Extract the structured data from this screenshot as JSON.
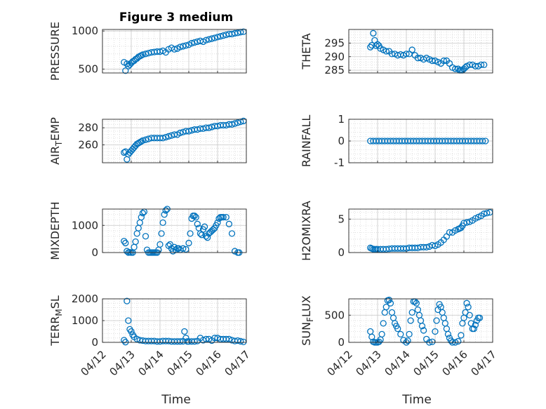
{
  "figure": {
    "title": "Figure 3 medium",
    "xlabel": "Time",
    "xtick_labels": [
      "04/12",
      "04/13",
      "04/14",
      "04/15",
      "04/16",
      "04/17"
    ],
    "marker_color": "#0072BD",
    "grid_color": "#d9d9d9"
  },
  "chart_data": [
    {
      "type": "scatter",
      "title": "Figure 3 medium",
      "xlabel": "",
      "ylabel": "PRESSURE",
      "xlim": [
        0,
        5
      ],
      "ylim": [
        450,
        1020
      ],
      "yticks": [
        500,
        1000
      ],
      "grid": true,
      "x": [
        0.75,
        0.8,
        0.85,
        0.9,
        0.95,
        1.0,
        1.05,
        1.1,
        1.15,
        1.2,
        1.25,
        1.3,
        1.35,
        1.4,
        1.5,
        1.6,
        1.7,
        1.8,
        1.9,
        2.0,
        2.1,
        2.2,
        2.3,
        2.4,
        2.5,
        2.6,
        2.7,
        2.8,
        2.9,
        3.0,
        3.1,
        3.2,
        3.3,
        3.4,
        3.5,
        3.6,
        3.7,
        3.8,
        3.9,
        4.0,
        4.1,
        4.2,
        4.3,
        4.4,
        4.5,
        4.6,
        4.7,
        4.8,
        4.9
      ],
      "y": [
        590,
        480,
        570,
        540,
        560,
        580,
        600,
        610,
        630,
        640,
        660,
        670,
        680,
        690,
        700,
        710,
        720,
        725,
        730,
        730,
        740,
        720,
        760,
        780,
        760,
        770,
        790,
        800,
        810,
        820,
        840,
        850,
        860,
        870,
        860,
        880,
        890,
        900,
        910,
        920,
        930,
        940,
        950,
        960,
        960,
        970,
        975,
        985,
        990
      ]
    },
    {
      "type": "scatter",
      "title": "",
      "xlabel": "",
      "ylabel": "THETA",
      "xlim": [
        0,
        5
      ],
      "ylim": [
        284,
        300
      ],
      "yticks": [
        285,
        290,
        295
      ],
      "grid": true,
      "x": [
        0.75,
        0.8,
        0.85,
        0.9,
        0.95,
        1.0,
        1.05,
        1.1,
        1.2,
        1.3,
        1.4,
        1.5,
        1.6,
        1.7,
        1.8,
        1.9,
        2.0,
        2.1,
        2.2,
        2.3,
        2.4,
        2.5,
        2.6,
        2.7,
        2.8,
        2.9,
        3.0,
        3.1,
        3.2,
        3.3,
        3.4,
        3.5,
        3.6,
        3.7,
        3.8,
        3.85,
        3.9,
        3.95,
        4.0,
        4.05,
        4.1,
        4.2,
        4.3,
        4.4,
        4.5,
        4.6,
        4.7
      ],
      "y": [
        293.5,
        294.2,
        298.6,
        296.0,
        294.0,
        294.5,
        294.0,
        293.0,
        292.5,
        292.0,
        292.0,
        291.0,
        291.0,
        290.5,
        290.8,
        290.5,
        291.0,
        291.0,
        292.5,
        290.5,
        289.5,
        289.5,
        289.0,
        289.5,
        289.0,
        288.5,
        288.5,
        288.0,
        287.5,
        288.5,
        288.5,
        287.5,
        286.0,
        285.5,
        285.5,
        285.0,
        285.0,
        285.0,
        285.5,
        286.0,
        286.5,
        287.0,
        287.0,
        286.5,
        286.5,
        287.0,
        287.0
      ]
    },
    {
      "type": "scatter",
      "title": "",
      "xlabel": "",
      "ylabel": "AIR_TEMP",
      "xlim": [
        0,
        5
      ],
      "ylim": [
        239,
        290
      ],
      "yticks": [
        260,
        280
      ],
      "grid": true,
      "x": [
        0.75,
        0.8,
        0.85,
        0.9,
        0.95,
        1.0,
        1.05,
        1.1,
        1.15,
        1.2,
        1.25,
        1.3,
        1.35,
        1.4,
        1.5,
        1.6,
        1.7,
        1.8,
        1.9,
        2.0,
        2.1,
        2.2,
        2.3,
        2.4,
        2.5,
        2.6,
        2.7,
        2.8,
        2.9,
        3.0,
        3.1,
        3.2,
        3.3,
        3.4,
        3.5,
        3.6,
        3.7,
        3.8,
        3.9,
        4.0,
        4.1,
        4.2,
        4.3,
        4.4,
        4.5,
        4.6,
        4.7,
        4.8,
        4.9
      ],
      "y": [
        251,
        252,
        243,
        249,
        251,
        253,
        255,
        257,
        259,
        261,
        262,
        263,
        264,
        265,
        266,
        267,
        268,
        268,
        268,
        268,
        268,
        269,
        270,
        271,
        272,
        272,
        274,
        275,
        276,
        276,
        277,
        278,
        278,
        279,
        279,
        280,
        280,
        281,
        282,
        282,
        283,
        283,
        283,
        284,
        284,
        285,
        286,
        287,
        288
      ]
    },
    {
      "type": "scatter",
      "title": "",
      "xlabel": "",
      "ylabel": "RAINFALL",
      "xlim": [
        0,
        5
      ],
      "ylim": [
        -1,
        1
      ],
      "yticks": [
        -1,
        0,
        1
      ],
      "grid": true,
      "x": [
        0.75,
        0.85,
        0.95,
        1.05,
        1.15,
        1.25,
        1.35,
        1.45,
        1.55,
        1.65,
        1.75,
        1.85,
        1.95,
        2.05,
        2.15,
        2.25,
        2.35,
        2.45,
        2.55,
        2.65,
        2.75,
        2.85,
        2.95,
        3.05,
        3.15,
        3.25,
        3.35,
        3.45,
        3.55,
        3.65,
        3.75,
        3.85,
        3.95,
        4.05,
        4.15,
        4.25,
        4.35,
        4.45,
        4.55,
        4.65,
        4.75
      ],
      "y": [
        0,
        0,
        0,
        0,
        0,
        0,
        0,
        0,
        0,
        0,
        0,
        0,
        0,
        0,
        0,
        0,
        0,
        0,
        0,
        0,
        0,
        0,
        0,
        0,
        0,
        0,
        0,
        0,
        0,
        0,
        0,
        0,
        0,
        0,
        0,
        0,
        0,
        0,
        0,
        0,
        0
      ]
    },
    {
      "type": "scatter",
      "title": "",
      "xlabel": "",
      "ylabel": "MIXDEPTH",
      "xlim": [
        0,
        5
      ],
      "ylim": [
        0,
        1600
      ],
      "yticks": [
        0,
        1000
      ],
      "grid": true,
      "x": [
        0.75,
        0.8,
        0.85,
        0.9,
        0.95,
        1.0,
        1.05,
        1.1,
        1.15,
        1.2,
        1.25,
        1.3,
        1.35,
        1.4,
        1.45,
        1.5,
        1.55,
        1.6,
        1.65,
        1.7,
        1.75,
        1.8,
        1.85,
        1.9,
        1.95,
        2.0,
        2.05,
        2.1,
        2.15,
        2.2,
        2.25,
        2.3,
        2.35,
        2.4,
        2.45,
        2.5,
        2.55,
        2.6,
        2.65,
        2.7,
        2.8,
        2.9,
        3.0,
        3.05,
        3.1,
        3.15,
        3.2,
        3.25,
        3.3,
        3.35,
        3.4,
        3.45,
        3.5,
        3.55,
        3.6,
        3.65,
        3.7,
        3.75,
        3.8,
        3.85,
        3.9,
        3.95,
        4.0,
        4.05,
        4.1,
        4.15,
        4.2,
        4.3,
        4.4,
        4.5,
        4.6,
        4.7,
        4.75
      ],
      "y": [
        420,
        350,
        50,
        0,
        10,
        0,
        0,
        200,
        400,
        700,
        900,
        1100,
        1300,
        1450,
        1500,
        600,
        100,
        0,
        0,
        0,
        0,
        0,
        0,
        0,
        100,
        300,
        700,
        1100,
        1400,
        1550,
        1600,
        250,
        300,
        150,
        50,
        200,
        100,
        150,
        150,
        100,
        150,
        120,
        350,
        700,
        1250,
        1350,
        1350,
        1300,
        1050,
        900,
        700,
        650,
        850,
        950,
        600,
        550,
        700,
        750,
        800,
        850,
        900,
        1000,
        1100,
        1250,
        1300,
        1300,
        1300,
        1300,
        1050,
        700,
        50,
        0,
        0
      ]
    },
    {
      "type": "scatter",
      "title": "",
      "xlabel": "",
      "ylabel": "H2OMIXRA",
      "xlim": [
        0,
        5
      ],
      "ylim": [
        0,
        6.5
      ],
      "yticks": [
        0,
        5
      ],
      "grid": true,
      "x": [
        0.75,
        0.8,
        0.85,
        0.9,
        0.95,
        1.0,
        1.1,
        1.2,
        1.3,
        1.4,
        1.5,
        1.6,
        1.7,
        1.8,
        1.9,
        2.0,
        2.1,
        2.2,
        2.3,
        2.4,
        2.5,
        2.6,
        2.7,
        2.8,
        2.9,
        3.0,
        3.1,
        3.2,
        3.3,
        3.4,
        3.5,
        3.6,
        3.7,
        3.8,
        3.85,
        3.9,
        3.95,
        4.0,
        4.1,
        4.2,
        4.3,
        4.4,
        4.5,
        4.6,
        4.7,
        4.8,
        4.9
      ],
      "y": [
        0.7,
        0.6,
        0.5,
        0.5,
        0.5,
        0.5,
        0.5,
        0.5,
        0.5,
        0.55,
        0.6,
        0.6,
        0.6,
        0.6,
        0.6,
        0.6,
        0.7,
        0.7,
        0.7,
        0.7,
        0.8,
        0.8,
        0.8,
        0.9,
        1.1,
        1.0,
        1.2,
        1.5,
        1.9,
        2.4,
        3.0,
        3.0,
        3.3,
        3.5,
        3.6,
        3.7,
        4.0,
        4.4,
        4.5,
        4.6,
        4.8,
        5.1,
        5.3,
        5.5,
        5.8,
        5.9,
        6.0
      ]
    },
    {
      "type": "scatter",
      "title": "",
      "xlabel": "Time",
      "ylabel": "TERR_MSL",
      "xlim": [
        0,
        5
      ],
      "ylim": [
        0,
        2000
      ],
      "yticks": [
        0,
        1000,
        2000
      ],
      "grid": true,
      "x": [
        0.75,
        0.8,
        0.85,
        0.9,
        0.95,
        1.0,
        1.05,
        1.1,
        1.2,
        1.3,
        1.4,
        1.5,
        1.6,
        1.7,
        1.8,
        1.9,
        2.0,
        2.1,
        2.2,
        2.3,
        2.4,
        2.5,
        2.6,
        2.7,
        2.8,
        2.85,
        2.9,
        2.95,
        3.0,
        3.1,
        3.2,
        3.3,
        3.4,
        3.5,
        3.6,
        3.7,
        3.8,
        3.9,
        4.0,
        4.1,
        4.2,
        4.3,
        4.4,
        4.5,
        4.6,
        4.7,
        4.8,
        4.9
      ],
      "y": [
        100,
        10,
        1900,
        1000,
        600,
        500,
        350,
        250,
        150,
        100,
        80,
        60,
        60,
        60,
        60,
        40,
        40,
        60,
        60,
        60,
        40,
        40,
        40,
        40,
        50,
        500,
        200,
        40,
        40,
        40,
        40,
        60,
        200,
        100,
        150,
        150,
        80,
        200,
        200,
        150,
        150,
        150,
        150,
        100,
        60,
        80,
        50,
        20
      ]
    },
    {
      "type": "scatter",
      "title": "",
      "xlabel": "Time",
      "ylabel": "SUN_FLUX",
      "xlim": [
        0,
        5
      ],
      "ylim": [
        0,
        800
      ],
      "yticks": [
        0,
        500
      ],
      "grid": true,
      "x": [
        0.75,
        0.8,
        0.85,
        0.9,
        0.95,
        1.0,
        1.05,
        1.1,
        1.15,
        1.2,
        1.25,
        1.3,
        1.35,
        1.4,
        1.45,
        1.5,
        1.55,
        1.6,
        1.65,
        1.7,
        1.8,
        1.9,
        2.0,
        2.05,
        2.1,
        2.15,
        2.2,
        2.25,
        2.3,
        2.35,
        2.4,
        2.45,
        2.5,
        2.55,
        2.6,
        2.7,
        2.8,
        2.9,
        3.0,
        3.05,
        3.1,
        3.15,
        3.2,
        3.25,
        3.3,
        3.35,
        3.4,
        3.45,
        3.5,
        3.55,
        3.6,
        3.7,
        3.8,
        3.9,
        3.95,
        4.0,
        4.05,
        4.1,
        4.15,
        4.2,
        4.25,
        4.3,
        4.35,
        4.4,
        4.45,
        4.5,
        4.55
      ],
      "y": [
        200,
        100,
        10,
        0,
        0,
        0,
        10,
        50,
        150,
        350,
        550,
        650,
        770,
        780,
        720,
        550,
        450,
        350,
        300,
        250,
        150,
        40,
        0,
        30,
        150,
        400,
        550,
        750,
        750,
        720,
        600,
        500,
        400,
        300,
        220,
        60,
        0,
        10,
        200,
        400,
        600,
        700,
        650,
        550,
        450,
        350,
        250,
        150,
        80,
        30,
        0,
        0,
        20,
        130,
        350,
        450,
        550,
        720,
        650,
        500,
        350,
        250,
        250,
        320,
        400,
        450,
        450
      ]
    }
  ]
}
